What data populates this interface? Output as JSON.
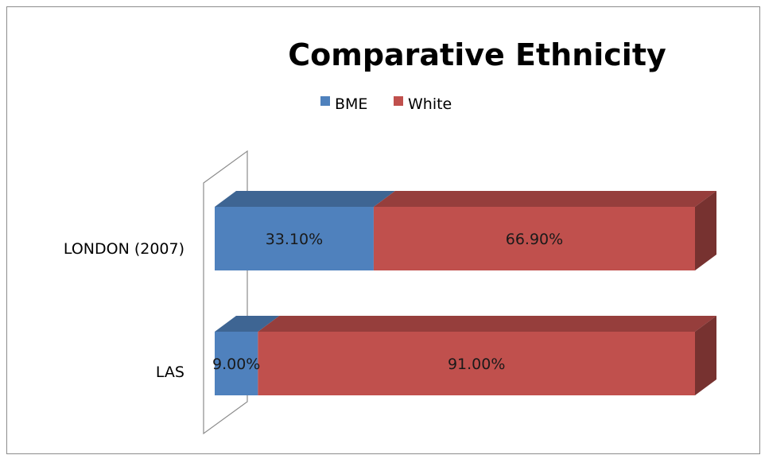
{
  "chart_data": {
    "type": "bar",
    "orientation": "horizontal",
    "stacked": "percent",
    "three_d": true,
    "title": "Comparative Ethnicity",
    "categories": [
      "LONDON (2007)",
      "LAS"
    ],
    "series": [
      {
        "name": "BME",
        "values": [
          33.1,
          9.0
        ],
        "labels": [
          "33.10%",
          "9.00%"
        ],
        "color": "#4f81bd"
      },
      {
        "name": "White",
        "values": [
          66.9,
          91.0
        ],
        "labels": [
          "66.90%",
          "91.00%"
        ],
        "color": "#c0504d"
      }
    ],
    "xlim": [
      0,
      100
    ],
    "legend_position": "top",
    "grid": false
  }
}
